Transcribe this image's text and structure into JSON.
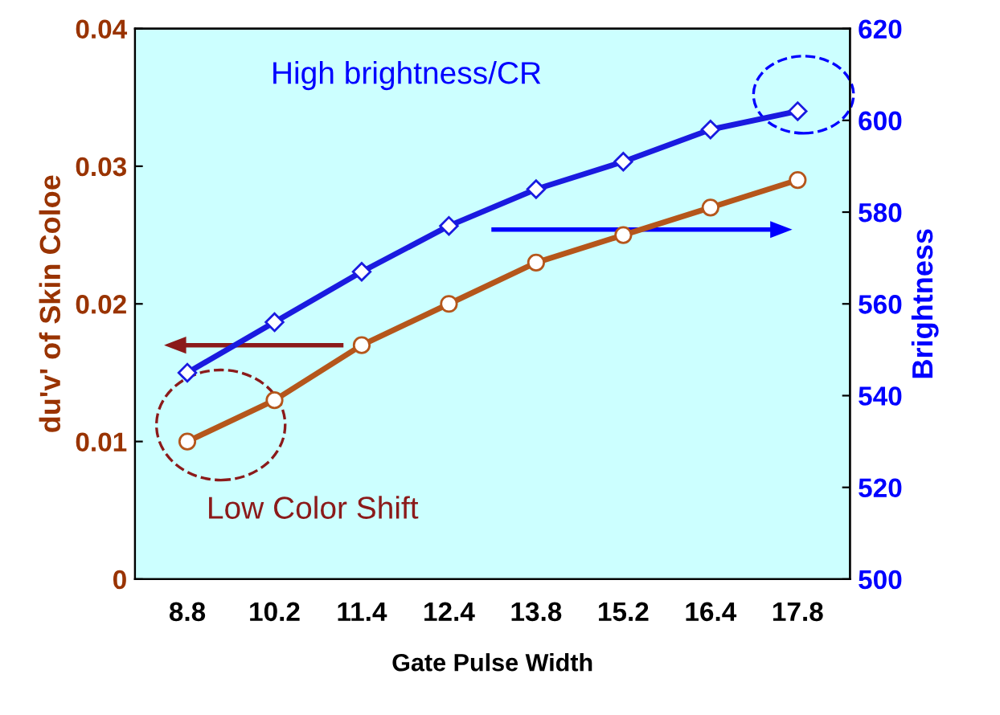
{
  "chart_data": {
    "type": "line",
    "xlabel": "Gate Pulse Width",
    "ylabel": "du'v' of Skin Coloe",
    "y2label": "Brightness",
    "categories": [
      "8.8",
      "10.2",
      "11.4",
      "12.4",
      "13.8",
      "15.2",
      "16.4",
      "17.8"
    ],
    "series": [
      {
        "color": "#b5561b",
        "marker": "circle",
        "values": [
          0.01,
          0.013,
          0.017,
          0.02,
          0.023,
          0.025,
          0.027,
          0.029
        ]
      },
      {
        "color": "#1a1ae0",
        "marker": "diamond",
        "axis": "y2",
        "values": [
          545,
          556,
          567,
          577,
          585,
          591,
          598,
          602
        ]
      }
    ],
    "ylim": [
      0,
      0.04
    ],
    "yticks": [
      {
        "value": 0,
        "label": "0"
      },
      {
        "value": 0.01,
        "label": "0.01"
      },
      {
        "value": 0.02,
        "label": "0.02"
      },
      {
        "value": 0.03,
        "label": "0.03"
      },
      {
        "value": 0.04,
        "label": "0.04"
      }
    ],
    "y2lim": [
      500,
      620
    ],
    "y2ticks": [
      500,
      520,
      540,
      560,
      580,
      600,
      620
    ],
    "annotations": [
      "High brightness/CR",
      "Low Color Shift"
    ],
    "grid": false
  }
}
